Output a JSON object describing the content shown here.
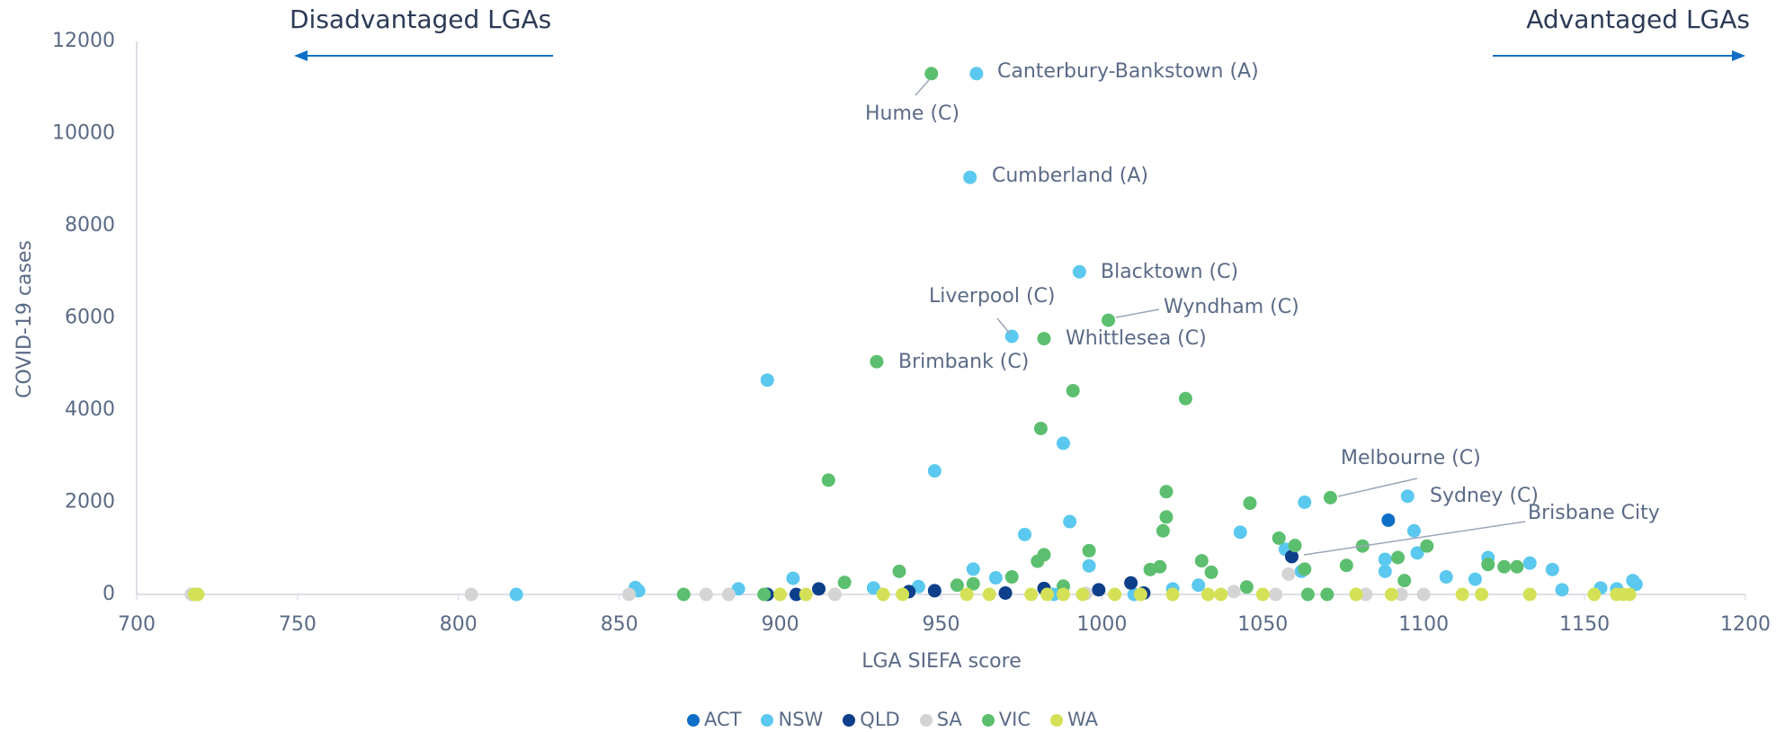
{
  "chart_data": {
    "type": "scatter",
    "xlabel": "LGA SIEFA score",
    "ylabel": "COVID-19 cases",
    "xlim": [
      700,
      1200
    ],
    "xticks": [
      700,
      750,
      800,
      850,
      900,
      950,
      1000,
      1050,
      1100,
      1150,
      1200
    ],
    "ylim": [
      0,
      12000
    ],
    "yticks": [
      0,
      2000,
      4000,
      6000,
      8000,
      10000,
      12000
    ],
    "grid": false,
    "legend": "bottom",
    "side_labels": [
      "Disadvantaged LGAs",
      "Advantaged LGAs"
    ],
    "annotations": [
      "Canterbury-Bankstown (A)",
      "Hume (C)",
      "Cumberland (A)",
      "Blacktown (C)",
      "Liverpool (C)",
      "Wyndham (C)",
      "Whittlesea (C)",
      "Brimbank (C)",
      "Melbourne (C)",
      "Sydney (C)",
      "Brisbane City"
    ],
    "series": [
      {
        "name": "ACT",
        "color": "#0f6fc6",
        "x": [
          1089
        ],
        "values": [
          1610
        ]
      },
      {
        "name": "NSW",
        "color": "#5bc8ef",
        "x": [
          961,
          959,
          993,
          972,
          896,
          948,
          988,
          990,
          976,
          960,
          996,
          1063,
          1095,
          1043,
          1097,
          1120,
          1133,
          1140,
          1107,
          1088,
          1098,
          1165,
          1166,
          1155,
          1160,
          1143,
          1116,
          1088,
          855,
          818,
          856,
          887,
          904,
          943,
          929,
          967,
          1030,
          1057,
          1062,
          1010,
          985,
          1022
        ],
        "values": [
          11300,
          9050,
          7000,
          5600,
          4650,
          2680,
          3280,
          1580,
          1300,
          550,
          620,
          2000,
          2130,
          1350,
          1380,
          800,
          680,
          540,
          380,
          760,
          900,
          300,
          220,
          140,
          120,
          100,
          330,
          500,
          150,
          0,
          80,
          120,
          350,
          170,
          140,
          360,
          200,
          980,
          500,
          0,
          0,
          120
        ]
      },
      {
        "name": "QLD",
        "color": "#0d3f8a",
        "x": [
          1059,
          1009,
          999,
          982,
          912,
          896,
          905,
          940,
          948,
          970,
          1013
        ],
        "values": [
          820,
          250,
          100,
          130,
          120,
          0,
          0,
          60,
          80,
          30,
          30
        ]
      },
      {
        "name": "SA",
        "color": "#d4d4d4",
        "x": [
          717,
          804,
          853,
          877,
          884,
          917,
          1058,
          1054,
          1082,
          1100,
          1093,
          1041,
          995
        ],
        "values": [
          0,
          0,
          0,
          0,
          0,
          0,
          440,
          0,
          0,
          0,
          0,
          60,
          20
        ]
      },
      {
        "name": "VIC",
        "color": "#5cbf6f",
        "x": [
          947,
          982,
          1002,
          930,
          991,
          1026,
          981,
          915,
          1020,
          1071,
          1046,
          1020,
          1019,
          1101,
          1081,
          1060,
          1055,
          996,
          982,
          980,
          1031,
          1092,
          1076,
          1120,
          1125,
          1129,
          1034,
          1015,
          1018,
          937,
          920,
          972,
          870,
          895,
          1063,
          1045,
          1094,
          1070,
          1064,
          955,
          960,
          988
        ],
        "values": [
          11300,
          5550,
          5950,
          5050,
          4420,
          4250,
          3600,
          2480,
          2230,
          2100,
          1980,
          1680,
          1380,
          1050,
          1050,
          1060,
          1220,
          950,
          860,
          720,
          730,
          800,
          630,
          650,
          600,
          600,
          480,
          540,
          600,
          500,
          260,
          380,
          0,
          0,
          550,
          160,
          300,
          0,
          0,
          200,
          230,
          180
        ]
      },
      {
        "name": "WA",
        "color": "#d4e157",
        "x": [
          718,
          719,
          900,
          908,
          932,
          938,
          958,
          965,
          978,
          983,
          988,
          994,
          1004,
          1012,
          1022,
          1033,
          1037,
          1050,
          1079,
          1090,
          1112,
          1118,
          1133,
          1153,
          1160,
          1162,
          1164
        ],
        "values": [
          0,
          0,
          0,
          0,
          0,
          0,
          0,
          0,
          0,
          0,
          0,
          0,
          0,
          0,
          0,
          0,
          0,
          0,
          0,
          0,
          0,
          0,
          0,
          0,
          0,
          0,
          0
        ]
      }
    ]
  }
}
